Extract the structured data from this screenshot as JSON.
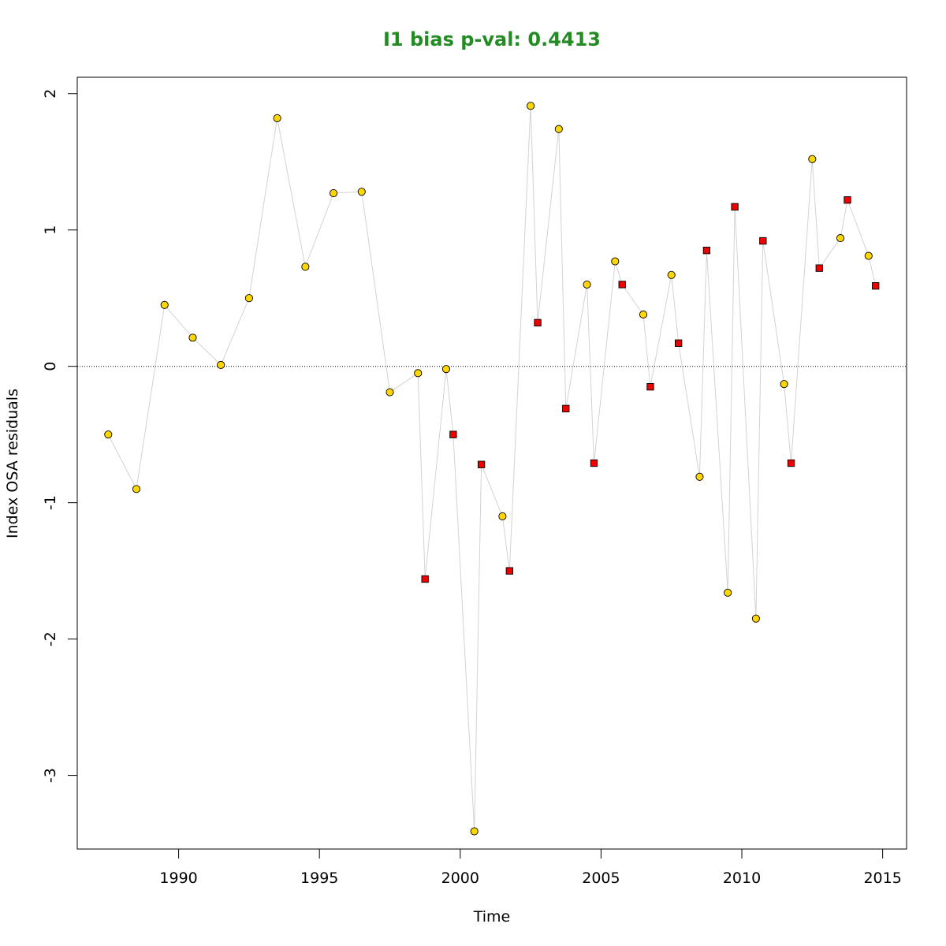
{
  "chart_data": {
    "type": "scatter",
    "title": "I1 bias p-val: 0.4413",
    "xlabel": "Time",
    "ylabel": "Index OSA residuals",
    "xlim": [
      1986.4,
      2015.85
    ],
    "ylim": [
      -3.54,
      2.12
    ],
    "x_ticks": [
      1990,
      1995,
      2000,
      2005,
      2010,
      2015
    ],
    "y_ticks": [
      -3,
      -2,
      -1,
      0,
      1,
      2
    ],
    "reference_line": 0,
    "grid": false,
    "colors": {
      "title": "#228B22",
      "series_a_fill": "#FFD700",
      "series_b_fill": "#EE0000",
      "connector": "#d3d3d3"
    },
    "series": [
      {
        "marker": "circle",
        "points": [
          [
            1987.5,
            -0.5
          ],
          [
            1988.5,
            -0.9
          ],
          [
            1989.5,
            0.45
          ],
          [
            1990.5,
            0.21
          ],
          [
            1991.5,
            0.01
          ],
          [
            1992.5,
            0.5
          ],
          [
            1993.5,
            1.82
          ],
          [
            1994.5,
            0.73
          ],
          [
            1995.5,
            1.27
          ],
          [
            1996.5,
            1.28
          ],
          [
            1997.5,
            -0.19
          ],
          [
            1998.5,
            -0.05
          ],
          [
            1999.5,
            -0.02
          ],
          [
            2000.5,
            -3.41
          ],
          [
            2001.5,
            -1.1
          ],
          [
            2002.5,
            1.91
          ],
          [
            2003.5,
            1.74
          ],
          [
            2004.5,
            0.6
          ],
          [
            2005.5,
            0.77
          ],
          [
            2006.5,
            0.38
          ],
          [
            2007.5,
            0.67
          ],
          [
            2008.5,
            -0.81
          ],
          [
            2009.5,
            -1.66
          ],
          [
            2010.5,
            -1.85
          ],
          [
            2011.5,
            -0.13
          ],
          [
            2012.5,
            1.52
          ],
          [
            2013.5,
            0.94
          ],
          [
            2014.5,
            0.81
          ]
        ]
      },
      {
        "marker": "square",
        "points": [
          [
            1998.75,
            -1.56
          ],
          [
            1999.75,
            -0.5
          ],
          [
            2000.75,
            -0.72
          ],
          [
            2001.75,
            -1.5
          ],
          [
            2002.75,
            0.32
          ],
          [
            2003.75,
            -0.31
          ],
          [
            2004.75,
            -0.71
          ],
          [
            2005.75,
            0.6
          ],
          [
            2006.75,
            -0.15
          ],
          [
            2007.75,
            0.17
          ],
          [
            2008.75,
            0.85
          ],
          [
            2009.75,
            1.17
          ],
          [
            2010.75,
            0.92
          ],
          [
            2011.75,
            -0.71
          ],
          [
            2012.75,
            0.72
          ],
          [
            2013.75,
            1.22
          ],
          [
            2014.75,
            0.59
          ]
        ]
      }
    ]
  }
}
